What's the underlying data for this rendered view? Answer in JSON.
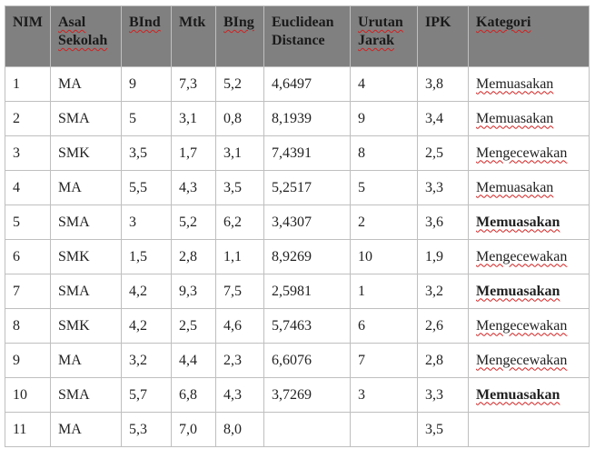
{
  "table": {
    "columns": [
      "NIM",
      "Asal Sekolah",
      "BInd",
      "Mtk",
      "BIng",
      "Euclidean Distance",
      "Urutan Jarak",
      "IPK",
      "Kategori"
    ],
    "rows": [
      [
        "1",
        "MA",
        "9",
        "7,3",
        "5,2",
        "4,6497",
        "4",
        "3,8",
        "Memuasakan"
      ],
      [
        "2",
        "SMA",
        "5",
        "3,1",
        "0,8",
        "8,1939",
        "9",
        "3,4",
        "Memuasakan"
      ],
      [
        "3",
        "SMK",
        "3,5",
        "1,7",
        "3,1",
        "7,4391",
        "8",
        "2,5",
        "Mengecewakan"
      ],
      [
        "4",
        "MA",
        "5,5",
        "4,3",
        "3,5",
        "5,2517",
        "5",
        "3,3",
        "Memuasakan"
      ],
      [
        "5",
        "SMA",
        "3",
        "5,2",
        "6,2",
        "3,4307",
        "2",
        "3,6",
        "Memuasakan"
      ],
      [
        "6",
        "SMK",
        "1,5",
        "2,8",
        "1,1",
        "8,9269",
        "10",
        "1,9",
        "Mengecewakan"
      ],
      [
        "7",
        "SMA",
        "4,2",
        "9,3",
        "7,5",
        "2,5981",
        "1",
        "3,2",
        "Memuasakan"
      ],
      [
        "8",
        "SMK",
        "4,2",
        "2,5",
        "4,6",
        "5,7463",
        "6",
        "2,6",
        "Mengecewakan"
      ],
      [
        "9",
        "MA",
        "3,2",
        "4,4",
        "2,3",
        "6,6076",
        "7",
        "2,8",
        "Mengecewakan"
      ],
      [
        "10",
        "SMA",
        "5,7",
        "6,8",
        "4,3",
        "3,7269",
        "3",
        "3,3",
        "Memuasakan"
      ],
      [
        "11",
        "MA",
        "5,3",
        "7,0",
        "8,0",
        null,
        null,
        "3,5",
        null
      ]
    ]
  }
}
